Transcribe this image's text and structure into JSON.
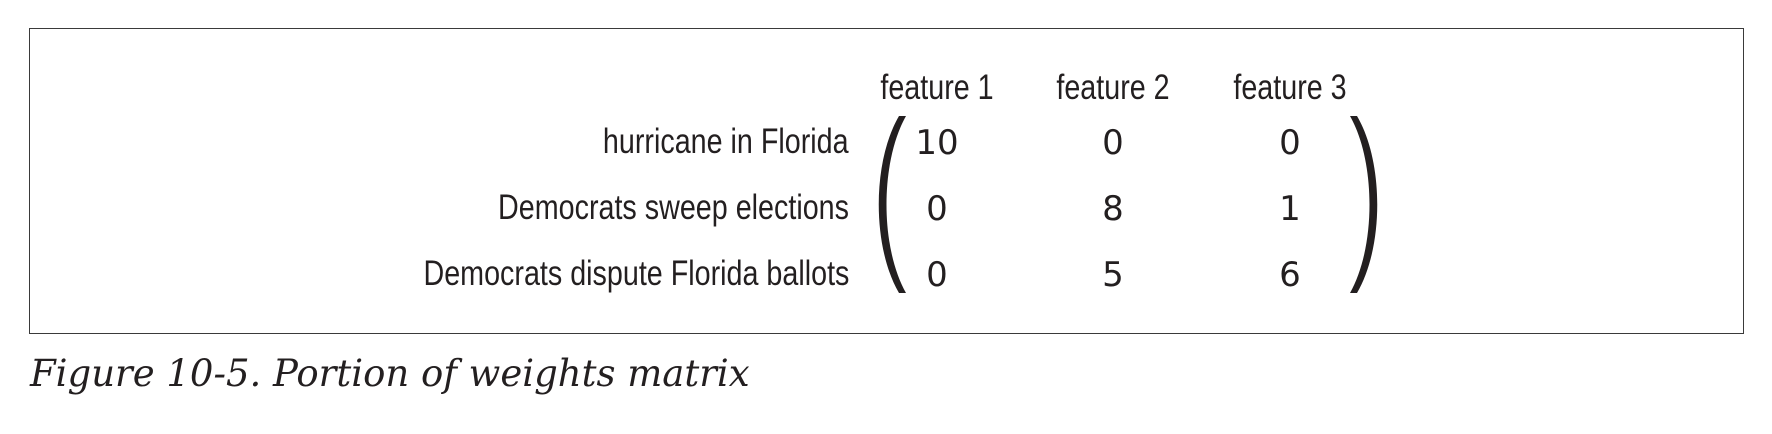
{
  "matrix": {
    "columns": [
      "feature 1",
      "feature 2",
      "feature 3"
    ],
    "rows": [
      {
        "label": "hurricane in Florida",
        "values": [
          "10",
          "0",
          "0"
        ]
      },
      {
        "label": "Democrats sweep elections",
        "values": [
          "0",
          "8",
          "1"
        ]
      },
      {
        "label": "Democrats dispute Florida ballots",
        "values": [
          "0",
          "5",
          "6"
        ]
      }
    ]
  },
  "caption": "Figure 10-5. Portion of weights matrix"
}
